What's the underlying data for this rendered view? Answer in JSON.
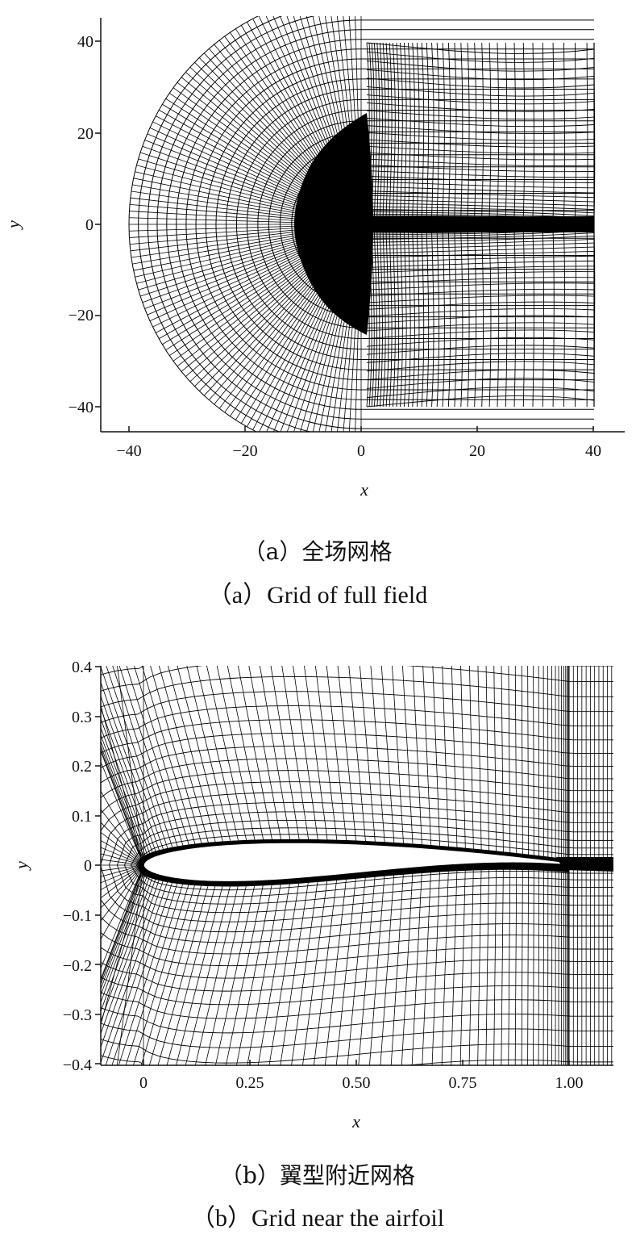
{
  "panel_a": {
    "x_label": "x",
    "y_label": "y",
    "x_ticks": [
      "−40",
      "−20",
      "0",
      "20",
      "40"
    ],
    "y_ticks": [
      "40",
      "20",
      "0",
      "−20",
      "−40"
    ],
    "caption_cn": "（a）全场网格",
    "caption_en": "（a）Grid of full field"
  },
  "panel_b": {
    "x_label": "x",
    "y_label": "y",
    "x_ticks": [
      "0",
      "0.25",
      "0.50",
      "0.75",
      "1.00"
    ],
    "y_ticks": [
      "0.4",
      "0.3",
      "0.2",
      "0.1",
      "0",
      "−0.1",
      "−0.2",
      "−0.3",
      "−0.4"
    ],
    "caption_cn": "（b）翼型附近网格",
    "caption_en": "（b）Grid near the airfoil"
  },
  "colors": {
    "grid_line": "#000000",
    "axis": "#111111",
    "background": "#ffffff"
  }
}
